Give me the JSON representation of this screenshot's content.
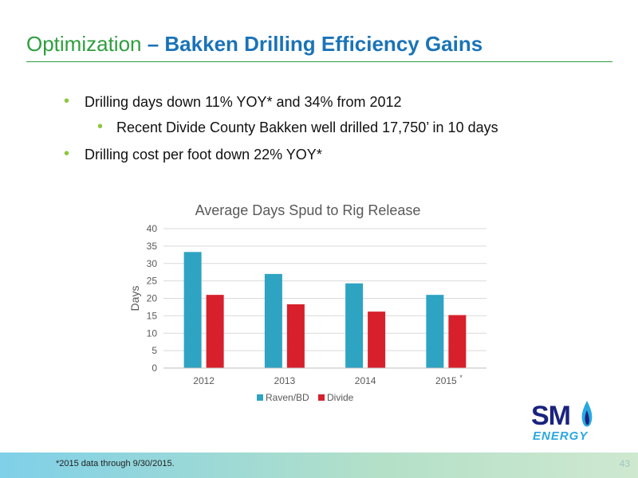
{
  "slide": {
    "title_part1": "Optimization",
    "title_part2": " – Bakken Drilling Efficiency Gains",
    "bullets": [
      "Drilling days down 11% YOY* and 34% from 2012",
      "Recent Divide County Bakken well drilled 17,750’ in 10 days",
      "Drilling cost per foot down 22% YOY*"
    ],
    "footnote": "*2015 data through 9/30/2015.",
    "page_number": "43",
    "logo": {
      "text": "SM",
      "subtext": "ENERGY"
    }
  },
  "chart_data": {
    "type": "bar",
    "title": "Average Days Spud to Rig Release",
    "xlabel": "",
    "ylabel": "Days",
    "ylim": [
      0,
      40
    ],
    "yticks": [
      0,
      5,
      10,
      15,
      20,
      25,
      30,
      35,
      40
    ],
    "categories": [
      "2012",
      "2013",
      "2014",
      "2015"
    ],
    "category_marks": [
      "",
      "",
      "",
      "*"
    ],
    "series": [
      {
        "name": "Raven/BD",
        "color": "#2ea3c2",
        "values": [
          33.3,
          27,
          24.3,
          21
        ]
      },
      {
        "name": "Divide",
        "color": "#d7202c",
        "values": [
          21,
          18.3,
          16.2,
          15.2
        ]
      }
    ],
    "grid": true,
    "legend": "bottom"
  }
}
